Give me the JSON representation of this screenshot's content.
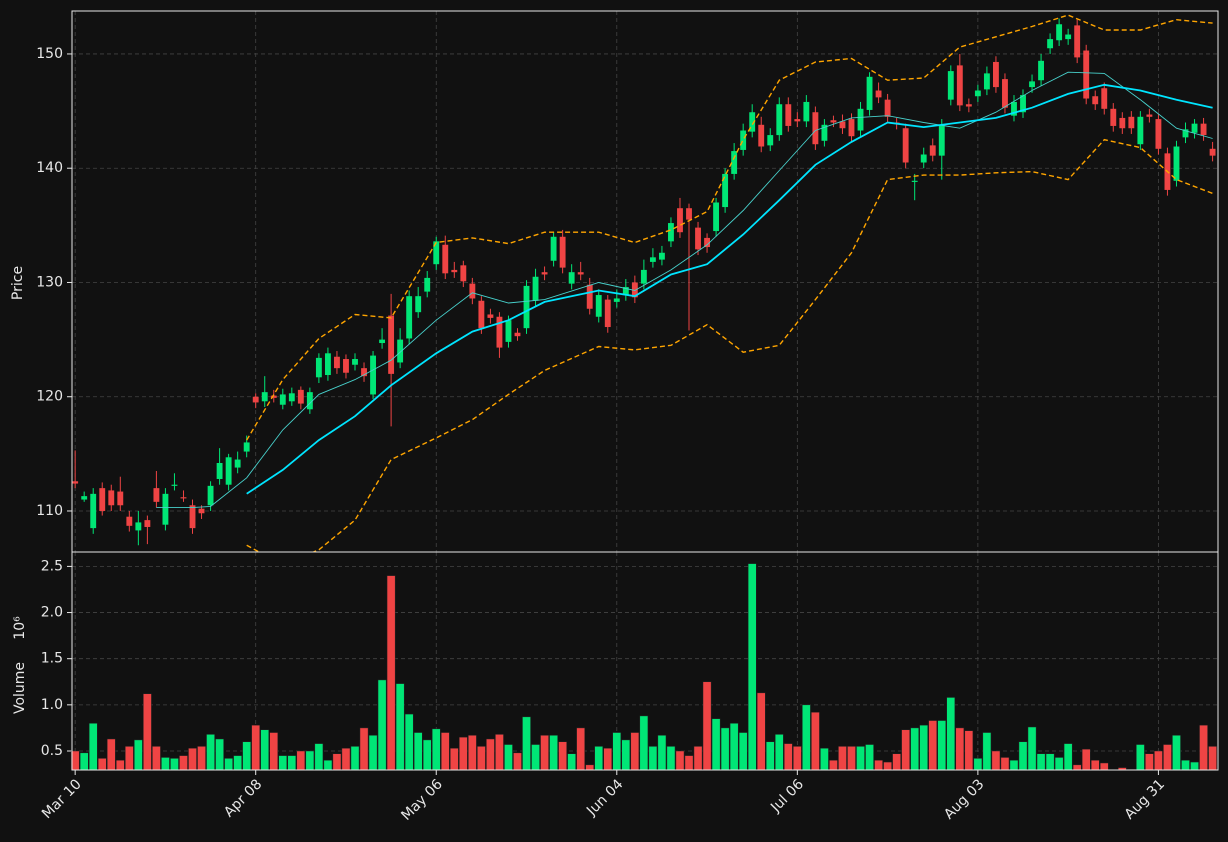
{
  "chart_data": {
    "type": "candlestick",
    "ylabel": "Price",
    "xlim": [
      -0.35,
      126.6
    ],
    "xticks": [
      {
        "value": 0,
        "label": "Mar 10"
      },
      {
        "value": 20,
        "label": "Apr 08"
      },
      {
        "value": 40,
        "label": "May 06"
      },
      {
        "value": 60,
        "label": "Jun 04"
      },
      {
        "value": 80,
        "label": "Jul 06"
      },
      {
        "value": 100,
        "label": "Aug 03"
      },
      {
        "value": 120,
        "label": "Aug 31"
      }
    ],
    "ylim": [
      106.41,
      153.76
    ],
    "yticks": [
      110,
      120,
      130,
      140,
      150
    ],
    "grid": true,
    "up_color": "#00e676",
    "down_color": "#ef4444",
    "open": [
      112.6,
      111.0,
      108.5,
      112.0,
      111.8,
      111.7,
      109.5,
      108.3,
      109.2,
      112.0,
      108.8,
      112.2,
      111.2,
      110.5,
      110.2,
      110.5,
      112.8,
      112.3,
      113.8,
      115.2,
      120.0,
      119.6,
      120.1,
      119.3,
      119.6,
      120.6,
      118.9,
      121.7,
      121.9,
      123.5,
      123.3,
      122.8,
      122.5,
      120.2,
      124.7,
      127.1,
      123.0,
      125.1,
      127.4,
      129.2,
      131.6,
      133.3,
      131.1,
      131.5,
      129.9,
      128.4,
      127.2,
      127.0,
      124.8,
      125.6,
      126.0,
      128.4,
      130.9,
      131.9,
      134.0,
      129.9,
      130.9,
      129.8,
      127.0,
      128.5,
      128.3,
      128.9,
      130.0,
      129.9,
      131.8,
      132.0,
      133.6,
      136.5,
      136.5,
      134.8,
      133.9,
      134.5,
      136.6,
      139.5,
      141.6,
      143.2,
      143.8,
      142.0,
      142.9,
      145.6,
      144.3,
      144.1,
      144.9,
      142.4,
      144.2,
      144.1,
      144.3,
      143.3,
      145.1,
      146.8,
      146.0,
      144.0,
      143.5,
      138.8,
      140.5,
      142.0,
      141.1,
      146.0,
      149.0,
      145.6,
      146.3,
      146.9,
      149.3,
      147.8,
      144.6,
      144.9,
      147.1,
      147.7,
      150.5,
      151.2,
      151.3,
      152.5,
      150.3,
      146.3,
      147.0,
      145.2,
      144.4,
      144.5,
      142.1,
      144.7,
      144.3,
      141.3,
      138.9,
      142.7,
      143.1,
      143.9,
      141.7
    ],
    "high": [
      115.3,
      111.7,
      112.0,
      112.5,
      112.3,
      113.0,
      110.0,
      110.0,
      109.6,
      113.5,
      112.0,
      113.3,
      111.8,
      111.0,
      110.5,
      112.6,
      115.5,
      115.0,
      115.2,
      116.6,
      120.3,
      121.8,
      120.6,
      120.7,
      120.8,
      120.9,
      120.8,
      123.8,
      124.3,
      124.0,
      123.7,
      123.8,
      123.0,
      124.0,
      126.0,
      129.0,
      126.0,
      129.3,
      129.6,
      131.0,
      134.0,
      134.1,
      131.8,
      131.9,
      130.4,
      128.8,
      127.7,
      127.4,
      127.1,
      126.0,
      130.2,
      131.2,
      131.4,
      134.4,
      134.6,
      131.6,
      131.8,
      130.4,
      129.4,
      128.9,
      129.4,
      130.3,
      130.6,
      132.0,
      133.0,
      133.2,
      135.7,
      137.4,
      136.9,
      135.3,
      134.3,
      137.4,
      140.0,
      142.2,
      143.9,
      145.6,
      144.5,
      143.5,
      146.2,
      146.2,
      144.9,
      146.4,
      145.4,
      144.3,
      144.6,
      144.7,
      144.8,
      145.8,
      148.4,
      147.5,
      146.5,
      144.4,
      143.9,
      139.5,
      141.8,
      142.6,
      144.3,
      149.0,
      150.0,
      146.1,
      147.3,
      148.9,
      149.8,
      148.3,
      146.4,
      146.9,
      148.2,
      150.0,
      151.8,
      153.1,
      152.2,
      153.0,
      150.8,
      146.8,
      147.5,
      145.7,
      144.9,
      145.0,
      145.0,
      145.2,
      144.8,
      141.8,
      142.4,
      144.0,
      144.3,
      144.4,
      142.3
    ],
    "low": [
      112.0,
      110.8,
      108.0,
      109.6,
      110.0,
      110.0,
      108.2,
      107.0,
      107.1,
      110.3,
      108.3,
      111.8,
      110.8,
      108.0,
      109.3,
      110.0,
      112.3,
      111.8,
      113.3,
      114.7,
      119.0,
      119.1,
      119.5,
      118.9,
      119.2,
      118.9,
      118.5,
      121.2,
      121.4,
      122.0,
      121.6,
      122.3,
      121.3,
      119.8,
      124.2,
      117.4,
      122.5,
      124.6,
      126.9,
      128.7,
      131.1,
      130.3,
      130.4,
      129.6,
      128.1,
      125.5,
      126.4,
      123.4,
      124.3,
      124.9,
      125.5,
      127.9,
      130.2,
      131.4,
      130.8,
      129.4,
      130.2,
      127.2,
      126.5,
      125.6,
      127.8,
      128.4,
      128.2,
      129.4,
      131.3,
      131.5,
      133.1,
      133.9,
      125.8,
      132.4,
      132.6,
      134.0,
      136.1,
      139.0,
      141.1,
      142.7,
      141.4,
      141.5,
      142.4,
      143.2,
      143.6,
      143.6,
      141.6,
      141.9,
      143.6,
      143.0,
      142.3,
      142.8,
      144.6,
      145.7,
      144.0,
      143.4,
      140.0,
      137.2,
      140.0,
      140.6,
      139.0,
      145.5,
      145.0,
      144.9,
      145.8,
      146.4,
      146.6,
      144.8,
      144.1,
      144.4,
      146.6,
      147.2,
      150.0,
      150.7,
      150.8,
      149.2,
      145.6,
      145.1,
      144.7,
      143.2,
      143.0,
      143.0,
      141.6,
      144.0,
      141.2,
      137.6,
      138.4,
      142.2,
      142.6,
      142.4,
      140.6
    ],
    "close": [
      112.4,
      111.3,
      111.5,
      110.0,
      110.5,
      110.5,
      108.7,
      109.0,
      108.6,
      110.8,
      111.5,
      112.3,
      111.1,
      108.5,
      109.8,
      112.2,
      114.2,
      114.7,
      114.5,
      116.0,
      119.5,
      120.4,
      119.9,
      120.2,
      120.3,
      119.4,
      120.4,
      123.4,
      123.8,
      122.5,
      122.1,
      123.3,
      121.8,
      123.6,
      125.0,
      122.0,
      125.0,
      128.8,
      128.8,
      130.4,
      133.6,
      130.8,
      130.9,
      130.1,
      128.6,
      126.0,
      126.9,
      124.3,
      126.7,
      125.3,
      129.7,
      130.5,
      130.7,
      134.0,
      131.3,
      130.9,
      130.7,
      127.7,
      128.9,
      126.1,
      128.6,
      129.6,
      128.7,
      131.1,
      132.2,
      132.6,
      135.2,
      134.4,
      135.5,
      132.9,
      133.1,
      137.0,
      139.5,
      141.5,
      143.3,
      144.9,
      141.9,
      142.9,
      145.6,
      143.7,
      144.1,
      145.8,
      142.1,
      143.8,
      144.0,
      143.5,
      142.8,
      145.2,
      148.0,
      146.2,
      144.5,
      143.9,
      140.5,
      138.9,
      141.2,
      141.1,
      143.8,
      148.5,
      145.5,
      145.4,
      146.8,
      148.3,
      147.1,
      145.3,
      145.8,
      146.4,
      147.6,
      149.4,
      151.3,
      152.6,
      151.7,
      149.7,
      146.1,
      145.6,
      145.2,
      143.7,
      143.5,
      143.5,
      144.5,
      144.5,
      141.7,
      138.1,
      141.9,
      143.4,
      143.9,
      142.9,
      141.1
    ],
    "series": [
      {
        "color": "#48d1cc",
        "linewidth": 0.9,
        "style": "solid",
        "x": [
          9,
          13,
          15,
          19,
          23,
          27,
          31,
          35,
          40,
          44,
          48,
          52,
          58,
          62,
          66,
          70,
          74,
          78,
          82,
          86,
          90,
          94,
          98,
          102,
          106,
          110,
          114,
          118,
          122,
          126
        ],
        "values": [
          110.3,
          110.3,
          110.4,
          112.9,
          117.1,
          120.2,
          121.5,
          123.2,
          126.7,
          129.1,
          128.2,
          128.5,
          130.0,
          129.3,
          131.1,
          133.3,
          136.3,
          139.8,
          143.3,
          144.4,
          144.6,
          144.0,
          143.5,
          144.9,
          146.8,
          148.4,
          148.3,
          146.0,
          143.5,
          142.6
        ]
      },
      {
        "color": "#00e5ff",
        "linewidth": 1.8,
        "style": "solid",
        "x": [
          19,
          23,
          27,
          31,
          35,
          40,
          44,
          48,
          52,
          58,
          62,
          66,
          70,
          74,
          78,
          82,
          86,
          90,
          94,
          98,
          102,
          106,
          110,
          114,
          118,
          122,
          126
        ],
        "values": [
          111.5,
          113.6,
          116.2,
          118.3,
          121.0,
          123.8,
          125.7,
          126.7,
          128.3,
          129.3,
          128.8,
          130.7,
          131.6,
          134.2,
          137.2,
          140.3,
          142.3,
          144.0,
          143.6,
          144.0,
          144.4,
          145.3,
          146.5,
          147.3,
          146.8,
          146.0,
          145.3
        ]
      },
      {
        "color": "#ffa500",
        "linewidth": 1.4,
        "style": "dashed",
        "x": [
          19,
          23,
          27,
          31,
          35,
          40,
          44,
          48,
          52,
          58,
          62,
          66,
          70,
          74,
          78,
          82,
          86,
          90,
          94,
          98,
          102,
          106,
          110,
          114,
          118,
          122,
          126
        ],
        "values": [
          116.2,
          121.5,
          125.1,
          127.2,
          126.9,
          133.5,
          133.9,
          133.4,
          134.4,
          134.4,
          133.5,
          134.6,
          136.2,
          142.5,
          147.7,
          149.3,
          149.6,
          147.7,
          147.9,
          150.6,
          151.5,
          152.4,
          153.4,
          152.1,
          152.1,
          153.0,
          152.7
        ]
      },
      {
        "color": "#ffa500",
        "linewidth": 1.4,
        "style": "dashed",
        "x": [
          19,
          23,
          27,
          31,
          35,
          40,
          44,
          48,
          52,
          58,
          62,
          66,
          70,
          74,
          78,
          82,
          86,
          90,
          94,
          98,
          102,
          106,
          110,
          114,
          118,
          122,
          126
        ],
        "values": [
          107.0,
          105.3,
          106.6,
          109.2,
          114.5,
          116.4,
          118.0,
          120.2,
          122.3,
          124.4,
          124.1,
          124.5,
          126.3,
          123.9,
          124.5,
          128.5,
          132.6,
          139.0,
          139.4,
          139.4,
          139.6,
          139.7,
          139.0,
          142.5,
          141.8,
          139.0,
          137.8
        ]
      }
    ],
    "volume": {
      "ylabel": "Volume",
      "offset_label": "10⁶",
      "ylim": [
        0.294,
        2.656
      ],
      "yticks": [
        0.5,
        {
          "value": 1.0,
          "label": "1.0"
        },
        1.5,
        {
          "value": 2.0,
          "label": "2.0"
        },
        2.5
      ],
      "values": [
        0.5,
        0.48,
        0.8,
        0.42,
        0.63,
        0.4,
        0.55,
        0.62,
        1.12,
        0.55,
        0.43,
        0.42,
        0.45,
        0.53,
        0.55,
        0.68,
        0.63,
        0.42,
        0.45,
        0.6,
        0.78,
        0.73,
        0.7,
        0.45,
        0.45,
        0.5,
        0.5,
        0.58,
        0.4,
        0.47,
        0.53,
        0.55,
        0.75,
        0.67,
        1.27,
        2.4,
        1.23,
        0.9,
        0.7,
        0.62,
        0.74,
        0.7,
        0.53,
        0.65,
        0.67,
        0.55,
        0.63,
        0.68,
        0.57,
        0.48,
        0.87,
        0.57,
        0.67,
        0.67,
        0.6,
        0.47,
        0.75,
        0.35,
        0.55,
        0.53,
        0.7,
        0.62,
        0.7,
        0.88,
        0.55,
        0.67,
        0.55,
        0.5,
        0.45,
        0.55,
        1.25,
        0.85,
        0.75,
        0.8,
        0.7,
        2.53,
        1.13,
        0.6,
        0.68,
        0.58,
        0.55,
        1.0,
        0.92,
        0.53,
        0.4,
        0.55,
        0.55,
        0.55,
        0.57,
        0.4,
        0.38,
        0.47,
        0.73,
        0.75,
        0.78,
        0.83,
        0.83,
        1.08,
        0.75,
        0.72,
        0.42,
        0.7,
        0.5,
        0.43,
        0.4,
        0.6,
        0.76,
        0.47,
        0.47,
        0.43,
        0.58,
        0.35,
        0.52,
        0.4,
        0.37,
        0.27,
        0.32,
        0.3,
        0.57,
        0.47,
        0.5,
        0.57,
        0.67,
        0.4,
        0.38,
        0.78,
        0.55
      ]
    }
  }
}
